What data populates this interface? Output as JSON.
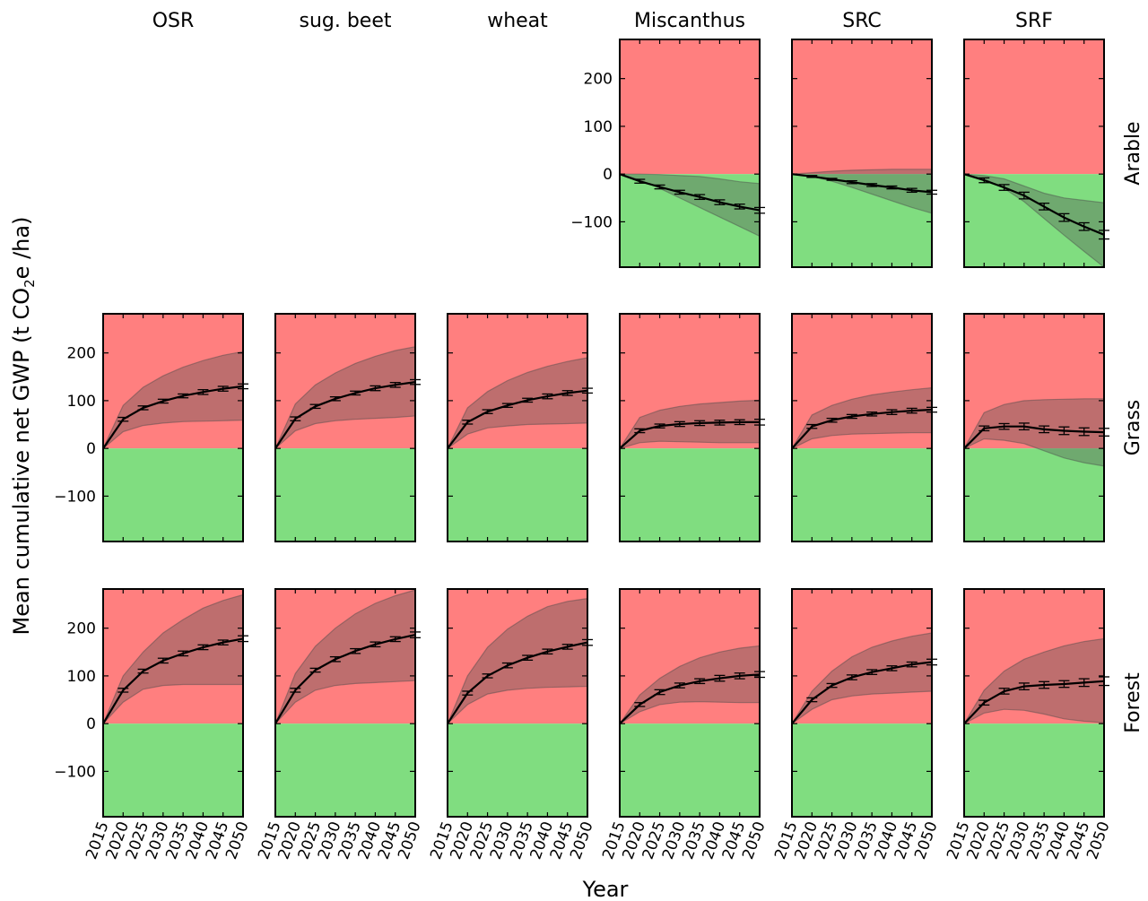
{
  "figure": {
    "ylabel_pre": "Mean cumulative net GWP (t CO",
    "ylabel_sub": "2",
    "ylabel_post": "e /ha)",
    "xlabel": "Year"
  },
  "colors": {
    "positive_region": "#ff7f7f",
    "negative_region": "#80dd80",
    "band": "#555555",
    "line": "#000000"
  },
  "chart_data": {
    "type": "line",
    "grid": false,
    "x_ticks": [
      "2015",
      "2020",
      "2025",
      "2030",
      "2035",
      "2040",
      "2045",
      "2050"
    ],
    "x": [
      2015,
      2020,
      2025,
      2030,
      2035,
      2040,
      2045,
      2050
    ],
    "xlim": [
      2015,
      2050
    ],
    "ylim": [
      -195,
      282
    ],
    "y_ticks": [
      200,
      100,
      0,
      -100
    ],
    "y_tick_labels": [
      "200",
      "100",
      "0",
      "−100"
    ],
    "columns": [
      "OSR",
      "sug. beet",
      "wheat",
      "Miscanthus",
      "SRC",
      "SRF"
    ],
    "rows": [
      "Arable",
      "Grass",
      "Forest"
    ],
    "panels": [
      {
        "row": "Arable",
        "column": "Miscanthus",
        "mean": [
          0,
          -15,
          -27,
          -38,
          -48,
          -59,
          -68,
          -76
        ],
        "err": [
          0,
          4,
          4,
          4,
          5,
          5,
          5,
          6
        ],
        "band_low": [
          0,
          -12,
          -30,
          -50,
          -70,
          -90,
          -110,
          -130
        ],
        "band_high": [
          0,
          0,
          -1,
          -3,
          -5,
          -10,
          -16,
          -20
        ]
      },
      {
        "row": "Arable",
        "column": "SRC",
        "mean": [
          0,
          -5,
          -11,
          -17,
          -23,
          -28,
          -34,
          -38
        ],
        "err": [
          0,
          2,
          2,
          3,
          3,
          3,
          4,
          4
        ],
        "band_low": [
          0,
          -5,
          -15,
          -28,
          -42,
          -56,
          -70,
          -82
        ],
        "band_high": [
          0,
          3,
          6,
          8,
          9,
          10,
          10,
          10
        ]
      },
      {
        "row": "Arable",
        "column": "SRF",
        "mean": [
          0,
          -13,
          -28,
          -45,
          -68,
          -91,
          -110,
          -127
        ],
        "err": [
          0,
          5,
          6,
          7,
          7,
          8,
          8,
          9
        ],
        "band_low": [
          0,
          -10,
          -30,
          -58,
          -93,
          -128,
          -162,
          -195
        ],
        "band_high": [
          0,
          -3,
          -10,
          -25,
          -40,
          -50,
          -55,
          -60
        ]
      },
      {
        "row": "Grass",
        "column": "OSR",
        "mean": [
          0,
          61,
          85,
          99,
          110,
          118,
          125,
          130
        ],
        "err": [
          0,
          4,
          4,
          4,
          4,
          5,
          5,
          5
        ],
        "band_low": [
          0,
          35,
          48,
          53,
          56,
          57,
          58,
          59
        ],
        "band_high": [
          0,
          90,
          128,
          152,
          170,
          184,
          195,
          203
        ]
      },
      {
        "row": "Grass",
        "column": "sug. beet",
        "mean": [
          0,
          62,
          88,
          104,
          116,
          126,
          133,
          139
        ],
        "err": [
          0,
          4,
          4,
          4,
          4,
          5,
          5,
          5
        ],
        "band_low": [
          0,
          37,
          52,
          58,
          61,
          63,
          65,
          68
        ],
        "band_high": [
          0,
          93,
          133,
          158,
          178,
          193,
          205,
          213
        ]
      },
      {
        "row": "Grass",
        "column": "wheat",
        "mean": [
          0,
          55,
          77,
          90,
          101,
          109,
          116,
          121
        ],
        "err": [
          0,
          4,
          4,
          4,
          4,
          5,
          5,
          5
        ],
        "band_low": [
          0,
          30,
          43,
          47,
          50,
          51,
          52,
          53
        ],
        "band_high": [
          0,
          85,
          119,
          142,
          159,
          172,
          182,
          190
        ]
      },
      {
        "row": "Grass",
        "column": "Miscanthus",
        "mean": [
          0,
          37,
          47,
          51,
          53,
          54,
          55,
          55
        ],
        "err": [
          0,
          4,
          4,
          5,
          5,
          5,
          5,
          6
        ],
        "band_low": [
          0,
          12,
          15,
          14,
          13,
          12,
          12,
          12
        ],
        "band_high": [
          0,
          65,
          80,
          88,
          93,
          96,
          99,
          101
        ]
      },
      {
        "row": "Grass",
        "column": "SRC",
        "mean": [
          0,
          46,
          59,
          67,
          72,
          76,
          79,
          81
        ],
        "err": [
          0,
          4,
          4,
          4,
          4,
          5,
          5,
          5
        ],
        "band_low": [
          0,
          20,
          27,
          30,
          31,
          32,
          33,
          33
        ],
        "band_high": [
          0,
          70,
          90,
          103,
          112,
          118,
          123,
          127
        ]
      },
      {
        "row": "Grass",
        "column": "SRF",
        "mean": [
          0,
          42,
          46,
          46,
          40,
          37,
          35,
          34
        ],
        "err": [
          0,
          5,
          6,
          7,
          7,
          8,
          8,
          8
        ],
        "band_low": [
          0,
          20,
          17,
          10,
          -5,
          -20,
          -30,
          -37
        ],
        "band_high": [
          0,
          75,
          92,
          100,
          102,
          103,
          104,
          104
        ]
      },
      {
        "row": "Forest",
        "column": "OSR",
        "mean": [
          0,
          70,
          110,
          132,
          147,
          160,
          170,
          178
        ],
        "err": [
          0,
          4,
          4,
          5,
          5,
          5,
          5,
          6
        ],
        "band_low": [
          0,
          45,
          72,
          80,
          82,
          82,
          82,
          82
        ],
        "band_high": [
          0,
          100,
          150,
          190,
          218,
          242,
          258,
          270
        ]
      },
      {
        "row": "Forest",
        "column": "sug. beet",
        "mean": [
          0,
          70,
          112,
          135,
          152,
          166,
          177,
          186
        ],
        "err": [
          0,
          4,
          4,
          5,
          5,
          5,
          5,
          6
        ],
        "band_low": [
          0,
          45,
          70,
          80,
          84,
          86,
          88,
          90
        ],
        "band_high": [
          0,
          105,
          162,
          200,
          230,
          252,
          268,
          280
        ]
      },
      {
        "row": "Forest",
        "column": "wheat",
        "mean": [
          0,
          64,
          100,
          122,
          138,
          151,
          161,
          170
        ],
        "err": [
          0,
          4,
          4,
          5,
          5,
          5,
          5,
          6
        ],
        "band_low": [
          0,
          40,
          62,
          70,
          74,
          76,
          77,
          78
        ],
        "band_high": [
          0,
          100,
          160,
          198,
          225,
          245,
          256,
          262
        ]
      },
      {
        "row": "Forest",
        "column": "Miscanthus",
        "mean": [
          0,
          40,
          66,
          80,
          89,
          95,
          100,
          103
        ],
        "err": [
          0,
          4,
          5,
          5,
          5,
          6,
          6,
          6
        ],
        "band_low": [
          0,
          25,
          40,
          45,
          46,
          45,
          44,
          44
        ],
        "band_high": [
          0,
          60,
          95,
          120,
          138,
          150,
          158,
          163
        ]
      },
      {
        "row": "Forest",
        "column": "SRC",
        "mean": [
          0,
          50,
          80,
          97,
          108,
          116,
          124,
          129
        ],
        "err": [
          0,
          4,
          4,
          5,
          5,
          5,
          5,
          6
        ],
        "band_low": [
          0,
          30,
          50,
          58,
          62,
          64,
          66,
          68
        ],
        "band_high": [
          0,
          68,
          110,
          140,
          160,
          173,
          183,
          190
        ]
      },
      {
        "row": "Forest",
        "column": "SRF",
        "mean": [
          0,
          44,
          68,
          78,
          81,
          83,
          86,
          89
        ],
        "err": [
          0,
          5,
          6,
          7,
          7,
          7,
          8,
          9
        ],
        "band_low": [
          0,
          22,
          30,
          28,
          20,
          10,
          5,
          2
        ],
        "band_high": [
          0,
          70,
          110,
          135,
          150,
          163,
          172,
          178
        ]
      }
    ]
  }
}
